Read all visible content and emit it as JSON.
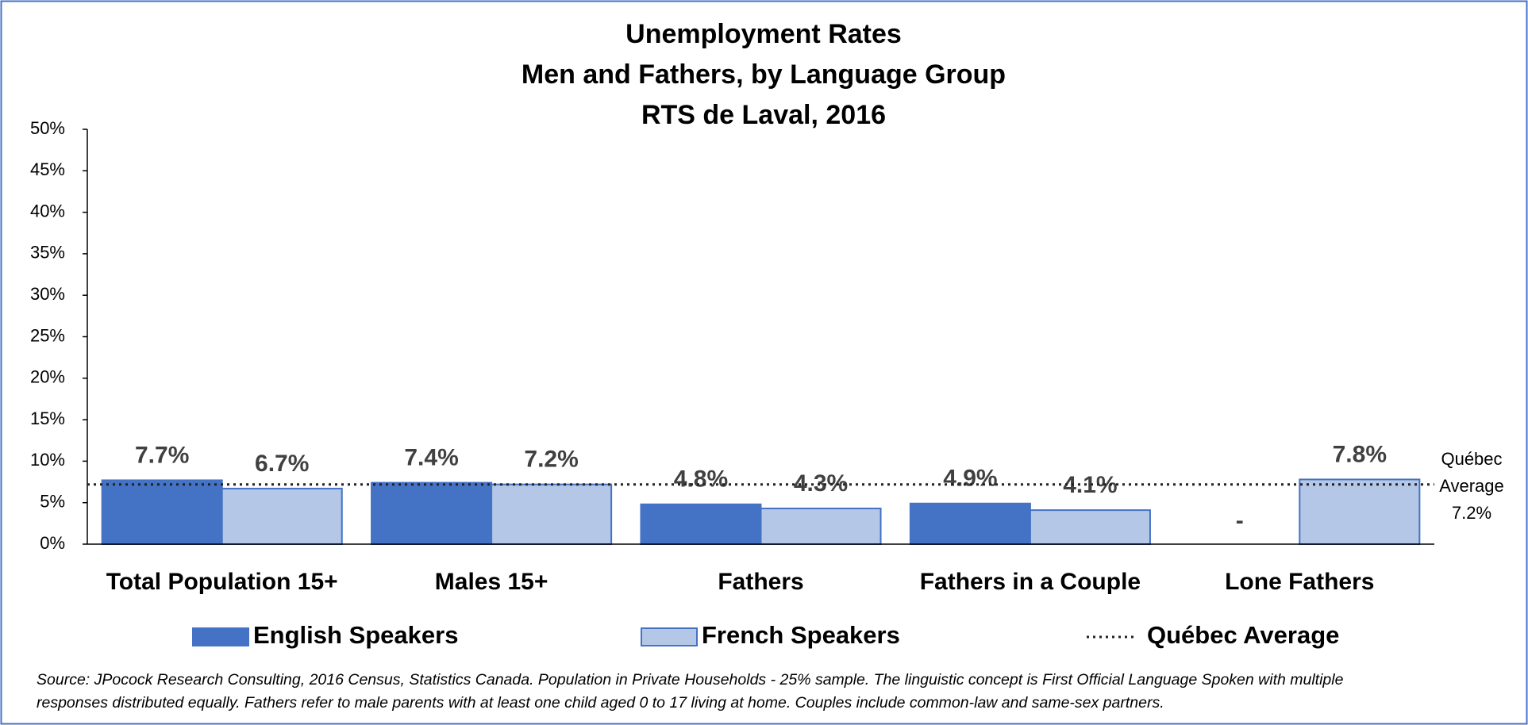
{
  "chart_data": {
    "type": "bar",
    "title": [
      "Unemployment Rates",
      "Men and Fathers, by Language Group",
      "RTS de Laval, 2016"
    ],
    "categories": [
      "Total Population 15+",
      "Males 15+",
      "Fathers",
      "Fathers in a Couple",
      "Lone Fathers"
    ],
    "series": [
      {
        "name": "English Speakers",
        "color": "#4472c4",
        "values": [
          7.7,
          7.4,
          4.8,
          4.9,
          null
        ],
        "value_labels": [
          "7.7%",
          "7.4%",
          "4.8%",
          "4.9%",
          "-"
        ]
      },
      {
        "name": "French Speakers",
        "color": "#b4c7e7",
        "values": [
          6.7,
          7.2,
          4.3,
          4.1,
          7.8
        ],
        "value_labels": [
          "6.7%",
          "7.2%",
          "4.3%",
          "4.1%",
          "7.8%"
        ]
      }
    ],
    "reference_line": {
      "name": "Québec Average",
      "value": 7.2,
      "label_lines": [
        "Québec",
        "Average",
        "7.2%"
      ]
    },
    "ylim": [
      0,
      50
    ],
    "yticks": [
      {
        "value": 0,
        "label": "0%"
      },
      {
        "value": 5,
        "label": "5%"
      },
      {
        "value": 10,
        "label": "10%"
      },
      {
        "value": 15,
        "label": "15%"
      },
      {
        "value": 20,
        "label": "20%"
      },
      {
        "value": 25,
        "label": "25%"
      },
      {
        "value": 30,
        "label": "30%"
      },
      {
        "value": 35,
        "label": "35%"
      },
      {
        "value": 40,
        "label": "40%"
      },
      {
        "value": 45,
        "label": "45%"
      },
      {
        "value": 50,
        "label": "50%"
      }
    ],
    "grid": false,
    "legend": "bottom",
    "source": [
      "Source: JPocock Research Consulting, 2016 Census, Statistics Canada. Population in Private Households - 25% sample. The linguistic concept is First Official Language Spoken with multiple",
      "responses distributed equally. Fathers refer to male parents with at least one child aged 0 to 17 living at home. Couples include common-law and same-sex partners."
    ]
  }
}
